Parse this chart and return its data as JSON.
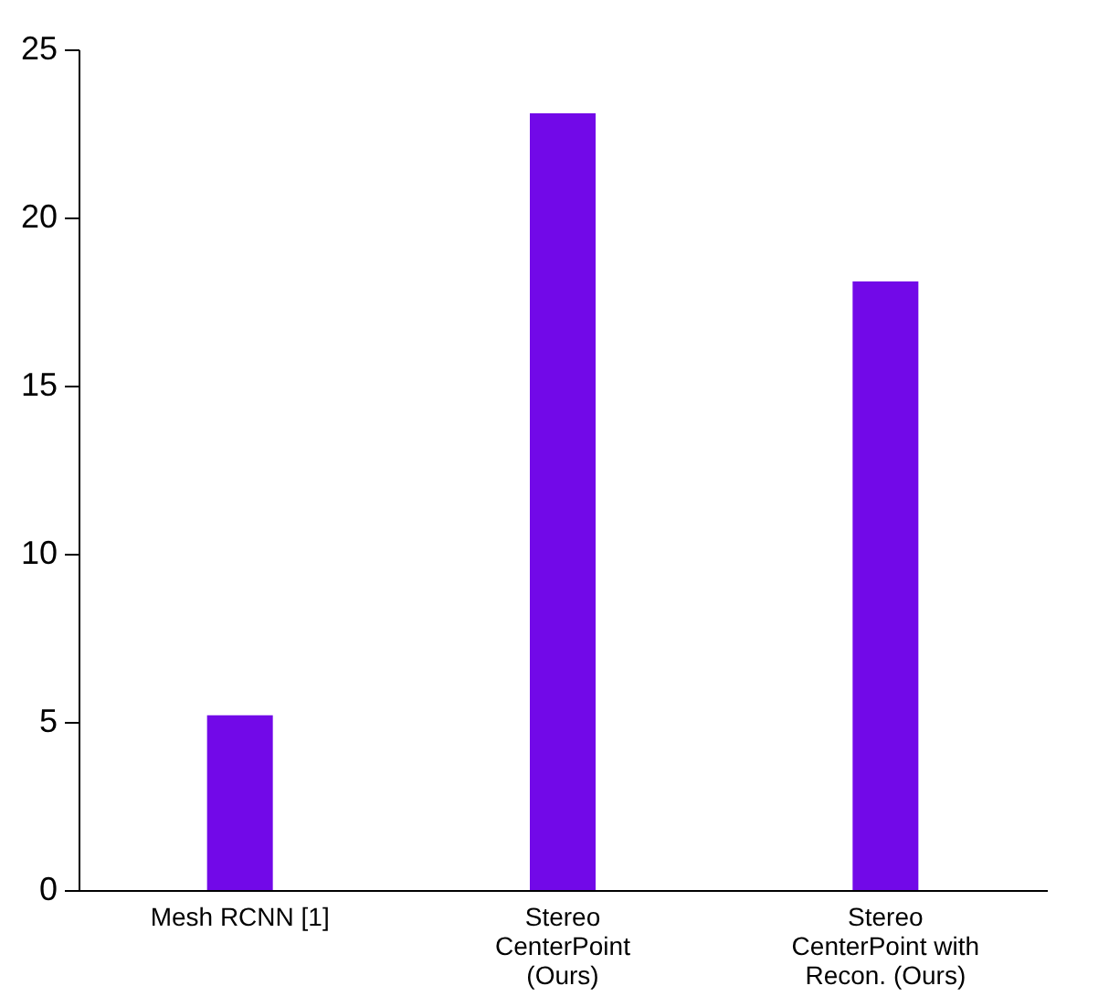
{
  "chart_data": {
    "type": "bar",
    "categories": [
      "Mesh RCNN [1]",
      "Stereo CenterPoint (Ours)",
      "Stereo CenterPoint with Recon. (Ours)"
    ],
    "values": [
      5.2,
      23.1,
      18.1
    ],
    "color": "#7209e8",
    "ylim": [
      0,
      25
    ],
    "yticks": [
      0,
      5,
      10,
      15,
      20,
      25
    ],
    "grid": false
  }
}
